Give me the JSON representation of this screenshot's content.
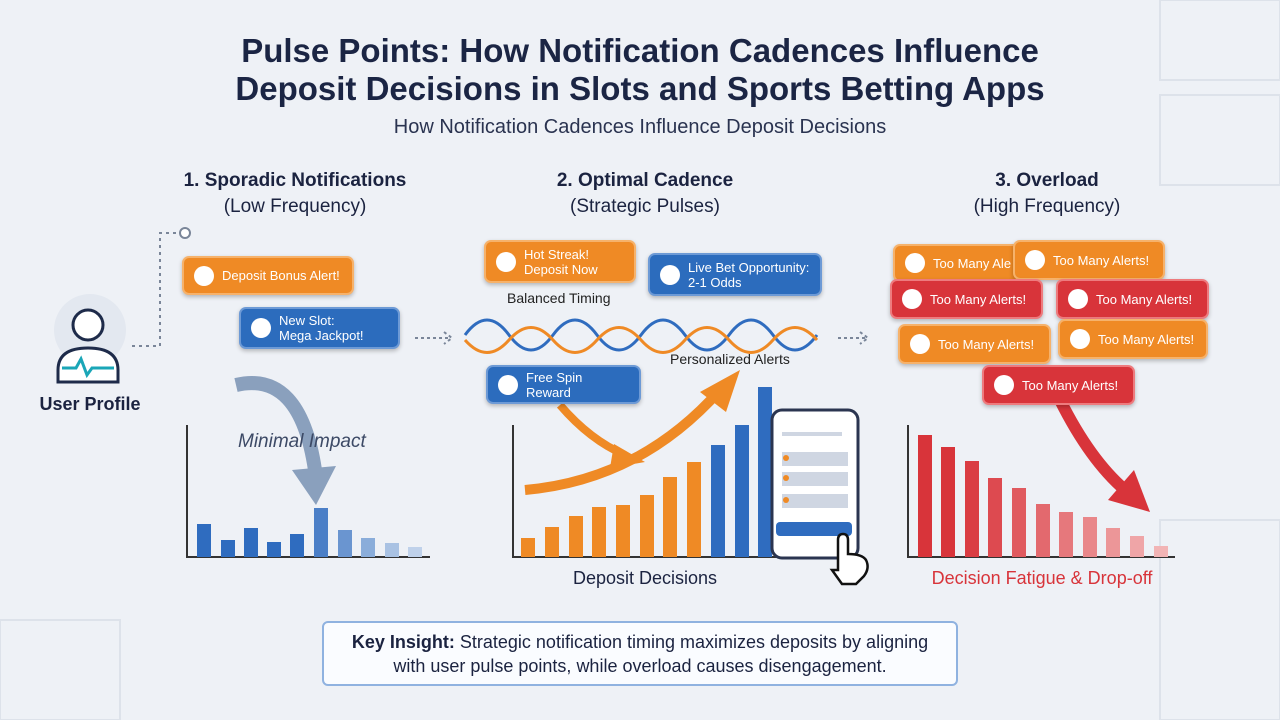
{
  "header": {
    "title": [
      "Pulse Points: How Notification Cadences Influence",
      "Deposit Decisions in Slots and Sports Betting Apps"
    ],
    "subtitle": "How Notification Cadences Influence Deposit Decisions"
  },
  "user": {
    "label": "User Profile"
  },
  "sections": [
    {
      "heading": "1. Sporadic Notifications",
      "subheading": "(Low Frequency)",
      "notifications": [
        "Deposit Bonus Alert!",
        "New Slot:\nMega Jackpot!"
      ],
      "annotation": "Minimal Impact"
    },
    {
      "heading": "2. Optimal Cadence",
      "subheading": "(Strategic Pulses)",
      "notifications": [
        "Hot Streak!\nDeposit Now",
        "Live Bet Opportunity:\n2-1 Odds",
        "Free Spin Reward"
      ],
      "wave_labels": [
        "Balanced Timing",
        "Personalized Alerts"
      ],
      "chart_label": "Deposit Decisions"
    },
    {
      "heading": "3. Overload",
      "subheading": "(High Frequency)",
      "notifications": [
        "Too Many Ale",
        "Too Many Alerts!",
        "Too Many Alerts!",
        "Too Many Alerts!",
        "Too Many Alerts!",
        "Too Many Alerts!",
        "Too Many Alerts!"
      ],
      "chart_label": "Decision Fatigue & Drop-off"
    }
  ],
  "insight": {
    "label": "Key Insight:",
    "text": "Strategic notification timing maximizes deposits by aligning with user pulse points, while overload causes disengagement."
  }
}
